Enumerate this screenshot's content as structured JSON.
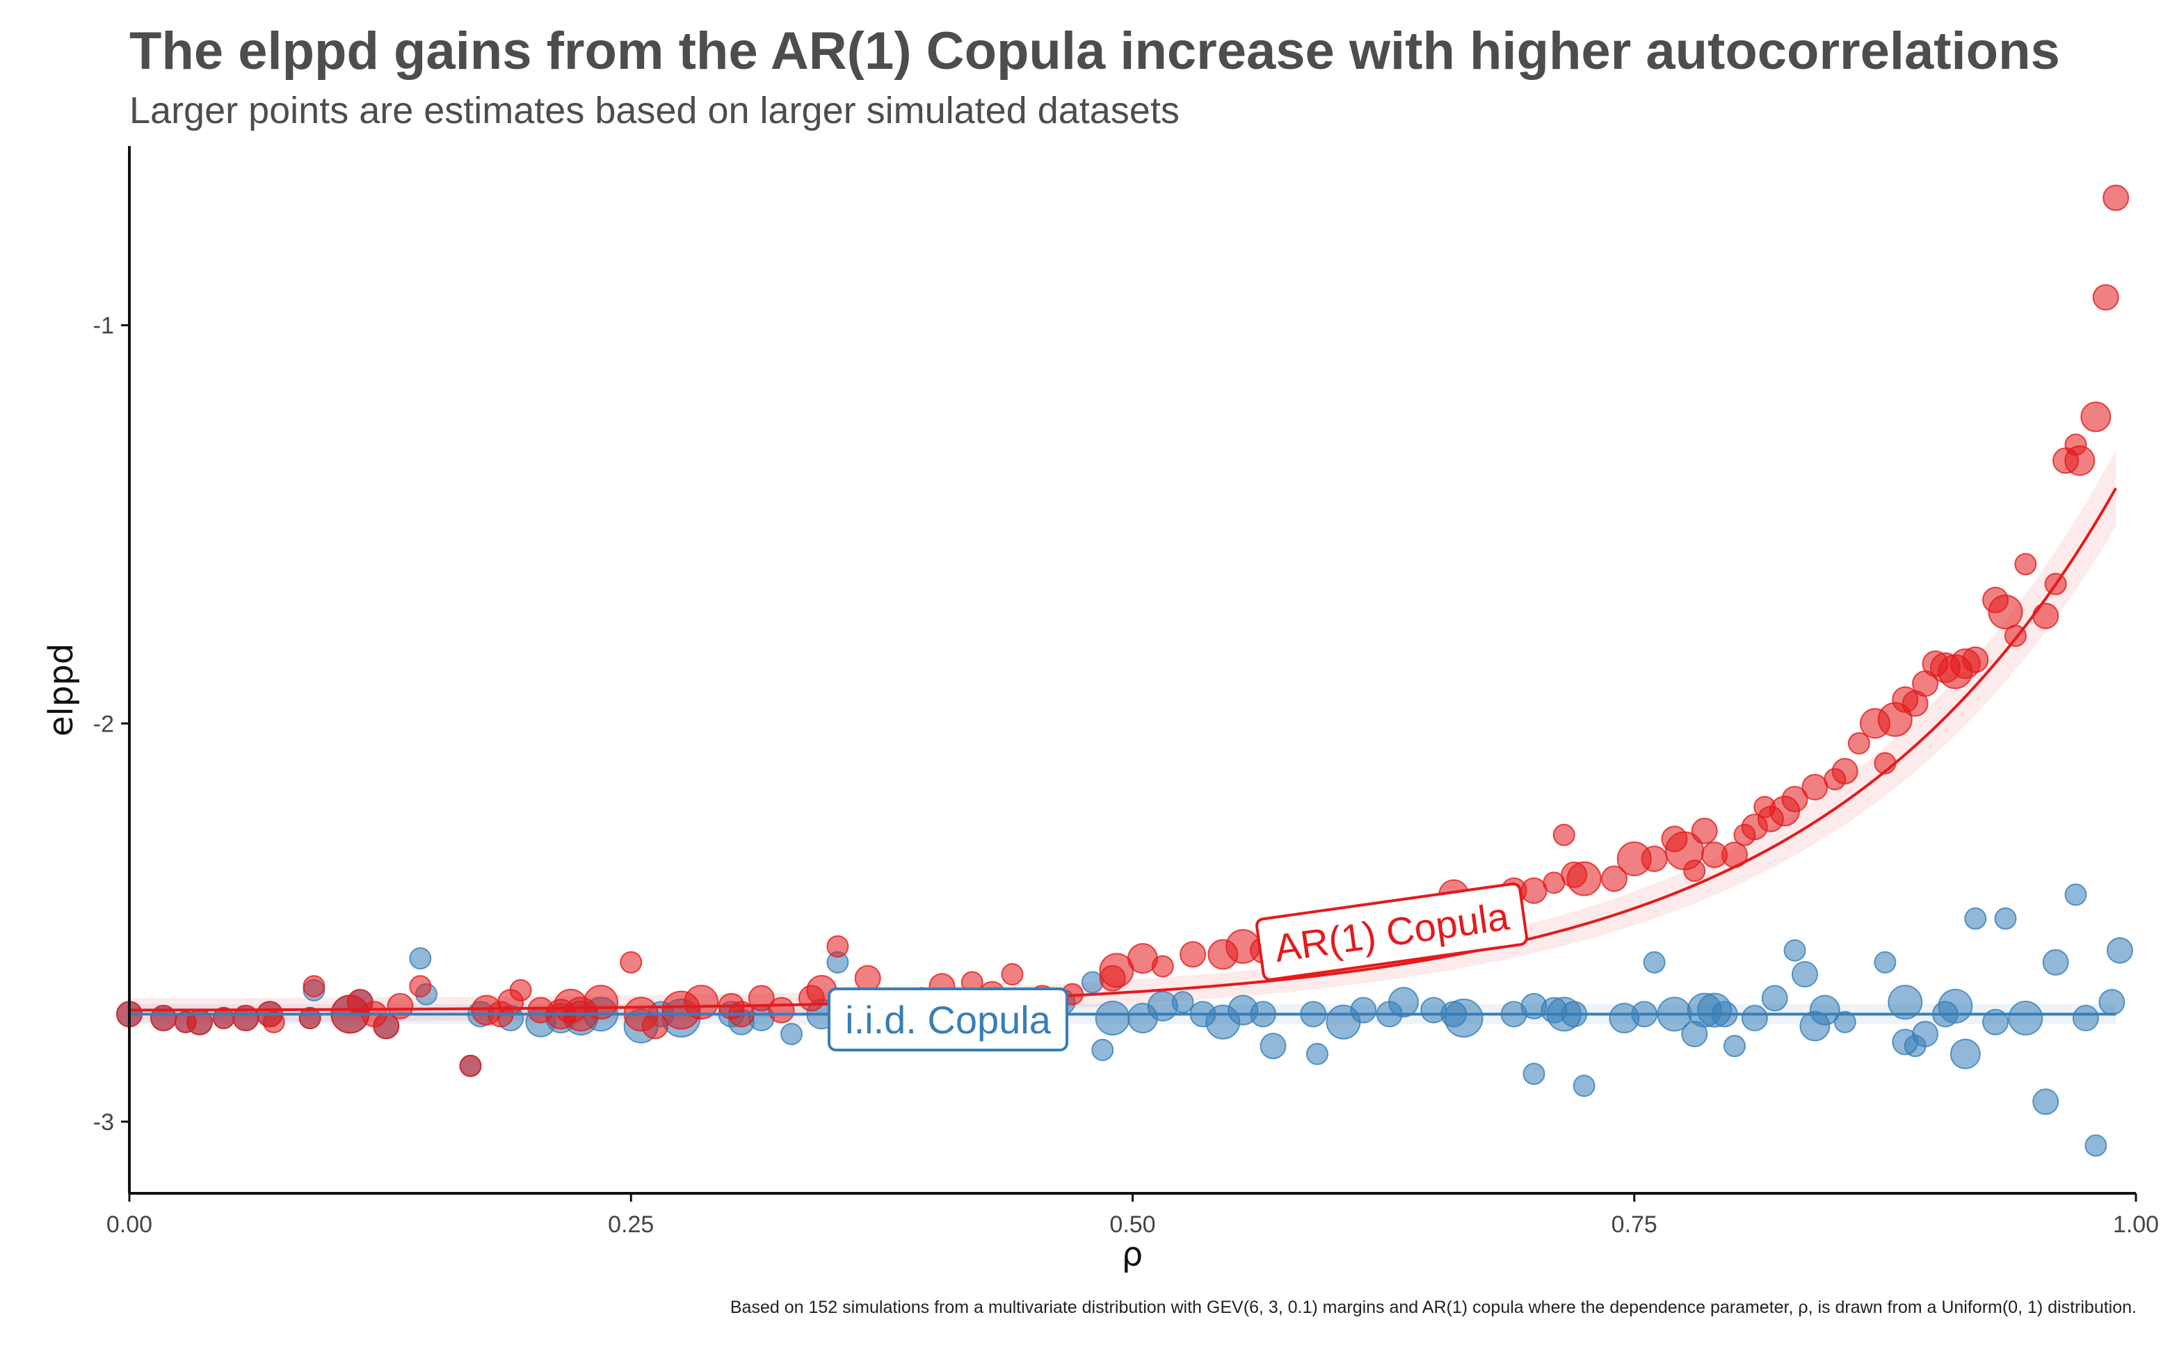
{
  "title": "The elppd gains from the AR(1) Copula increase with higher autocorrelations",
  "subtitle": "Larger points are estimates based on larger simulated datasets",
  "caption": "Based on 152 simulations from a multivariate distribution with GEV(6, 3, 0.1) margins and AR(1) copula where the dependence parameter, ρ, is drawn from a Uniform(0, 1) distribution.",
  "colors": {
    "ar1": "#e41a1c",
    "iid": "#377eb8"
  },
  "chart_data": {
    "type": "scatter",
    "xlabel": "ρ",
    "ylabel": "elppd",
    "xlim": [
      0,
      1
    ],
    "ylim": [
      -3.18,
      -0.55
    ],
    "xticks": [
      0,
      0.25,
      0.5,
      0.75,
      1
    ],
    "xtick_labels": [
      "0.00",
      "0.25",
      "0.50",
      "0.75",
      "1.00"
    ],
    "yticks": [
      -1,
      -2,
      -3
    ],
    "ytick_labels": [
      "-1",
      "-2",
      "-3"
    ],
    "grid": false,
    "series": [
      {
        "name": "AR(1) Copula",
        "color": "#e41a1c",
        "fit": {
          "form": "exponential",
          "base": -2.72,
          "scale": 0.00158,
          "rate": 6.79
        },
        "points": [
          [
            0.0,
            -2.73,
            4
          ],
          [
            0.017,
            -2.74,
            4
          ],
          [
            0.028,
            -2.75,
            3
          ],
          [
            0.035,
            -2.75,
            4
          ],
          [
            0.047,
            -2.74,
            3
          ],
          [
            0.058,
            -2.74,
            4
          ],
          [
            0.07,
            -2.73,
            4
          ],
          [
            0.072,
            -2.75,
            3
          ],
          [
            0.09,
            -2.74,
            3
          ],
          [
            0.092,
            -2.66,
            3
          ],
          [
            0.11,
            -2.73,
            7
          ],
          [
            0.115,
            -2.7,
            4
          ],
          [
            0.122,
            -2.73,
            4
          ],
          [
            0.128,
            -2.76,
            4
          ],
          [
            0.135,
            -2.71,
            4
          ],
          [
            0.145,
            -2.66,
            3
          ],
          [
            0.17,
            -2.86,
            3
          ],
          [
            0.178,
            -2.72,
            5
          ],
          [
            0.185,
            -2.73,
            4
          ],
          [
            0.19,
            -2.7,
            4
          ],
          [
            0.195,
            -2.67,
            3
          ],
          [
            0.205,
            -2.72,
            4
          ],
          [
            0.215,
            -2.73,
            5
          ],
          [
            0.22,
            -2.71,
            6
          ],
          [
            0.225,
            -2.73,
            6
          ],
          [
            0.235,
            -2.7,
            6
          ],
          [
            0.25,
            -2.6,
            3
          ],
          [
            0.255,
            -2.73,
            6
          ],
          [
            0.262,
            -2.76,
            4
          ],
          [
            0.275,
            -2.72,
            7
          ],
          [
            0.285,
            -2.7,
            6
          ],
          [
            0.3,
            -2.71,
            4
          ],
          [
            0.305,
            -2.73,
            4
          ],
          [
            0.315,
            -2.69,
            4
          ],
          [
            0.325,
            -2.72,
            4
          ],
          [
            0.34,
            -2.69,
            4
          ],
          [
            0.345,
            -2.67,
            5
          ],
          [
            0.353,
            -2.56,
            3
          ],
          [
            0.368,
            -2.64,
            4
          ],
          [
            0.38,
            -2.72,
            4
          ],
          [
            0.395,
            -2.69,
            3
          ],
          [
            0.405,
            -2.66,
            4
          ],
          [
            0.42,
            -2.65,
            3
          ],
          [
            0.43,
            -2.68,
            4
          ],
          [
            0.44,
            -2.63,
            3
          ],
          [
            0.455,
            -2.69,
            4
          ],
          [
            0.47,
            -2.68,
            3
          ],
          [
            0.49,
            -2.64,
            4
          ],
          [
            0.492,
            -2.62,
            6
          ],
          [
            0.505,
            -2.59,
            5
          ],
          [
            0.515,
            -2.61,
            3
          ],
          [
            0.53,
            -2.58,
            4
          ],
          [
            0.545,
            -2.58,
            5
          ],
          [
            0.555,
            -2.56,
            6
          ],
          [
            0.565,
            -2.57,
            4
          ],
          [
            0.58,
            -2.54,
            4
          ],
          [
            0.6,
            -2.52,
            4
          ],
          [
            0.62,
            -2.5,
            3
          ],
          [
            0.64,
            -2.47,
            4
          ],
          [
            0.66,
            -2.43,
            5
          ],
          [
            0.69,
            -2.42,
            4
          ],
          [
            0.7,
            -2.42,
            4
          ],
          [
            0.71,
            -2.4,
            3
          ],
          [
            0.72,
            -2.38,
            4
          ],
          [
            0.715,
            -2.28,
            3
          ],
          [
            0.725,
            -2.39,
            6
          ],
          [
            0.74,
            -2.39,
            4
          ],
          [
            0.75,
            -2.34,
            6
          ],
          [
            0.76,
            -2.34,
            4
          ],
          [
            0.77,
            -2.29,
            4
          ],
          [
            0.775,
            -2.32,
            7
          ],
          [
            0.78,
            -2.37,
            3
          ],
          [
            0.785,
            -2.27,
            4
          ],
          [
            0.79,
            -2.33,
            4
          ],
          [
            0.8,
            -2.33,
            4
          ],
          [
            0.805,
            -2.28,
            3
          ],
          [
            0.81,
            -2.26,
            4
          ],
          [
            0.815,
            -2.21,
            3
          ],
          [
            0.818,
            -2.24,
            4
          ],
          [
            0.825,
            -2.22,
            5
          ],
          [
            0.83,
            -2.19,
            4
          ],
          [
            0.84,
            -2.16,
            4
          ],
          [
            0.85,
            -2.14,
            3
          ],
          [
            0.855,
            -2.12,
            4
          ],
          [
            0.862,
            -2.05,
            3
          ],
          [
            0.87,
            -2.0,
            5
          ],
          [
            0.875,
            -2.1,
            3
          ],
          [
            0.88,
            -1.99,
            6
          ],
          [
            0.885,
            -1.94,
            4
          ],
          [
            0.89,
            -1.95,
            4
          ],
          [
            0.895,
            -1.9,
            4
          ],
          [
            0.9,
            -1.85,
            4
          ],
          [
            0.905,
            -1.86,
            5
          ],
          [
            0.91,
            -1.87,
            6
          ],
          [
            0.915,
            -1.85,
            5
          ],
          [
            0.92,
            -1.84,
            4
          ],
          [
            0.93,
            -1.69,
            4
          ],
          [
            0.935,
            -1.72,
            6
          ],
          [
            0.94,
            -1.78,
            3
          ],
          [
            0.945,
            -1.6,
            3
          ],
          [
            0.955,
            -1.73,
            4
          ],
          [
            0.96,
            -1.65,
            3
          ],
          [
            0.965,
            -1.34,
            4
          ],
          [
            0.97,
            -1.3,
            3
          ],
          [
            0.972,
            -1.34,
            5
          ],
          [
            0.98,
            -1.23,
            5
          ],
          [
            0.985,
            -0.93,
            4
          ],
          [
            0.99,
            -0.68,
            4
          ]
        ]
      },
      {
        "name": "i.i.d. Copula",
        "color": "#377eb8",
        "fit": {
          "form": "constant",
          "value": -2.73
        },
        "points": [
          [
            0.0,
            -2.73,
            4
          ],
          [
            0.017,
            -2.74,
            4
          ],
          [
            0.028,
            -2.75,
            3
          ],
          [
            0.035,
            -2.75,
            4
          ],
          [
            0.047,
            -2.74,
            3
          ],
          [
            0.058,
            -2.74,
            4
          ],
          [
            0.07,
            -2.73,
            4
          ],
          [
            0.09,
            -2.74,
            3
          ],
          [
            0.092,
            -2.67,
            3
          ],
          [
            0.11,
            -2.73,
            7
          ],
          [
            0.115,
            -2.7,
            4
          ],
          [
            0.128,
            -2.76,
            4
          ],
          [
            0.145,
            -2.59,
            3
          ],
          [
            0.148,
            -2.68,
            3
          ],
          [
            0.17,
            -2.86,
            3
          ],
          [
            0.175,
            -2.73,
            4
          ],
          [
            0.19,
            -2.74,
            4
          ],
          [
            0.205,
            -2.75,
            5
          ],
          [
            0.215,
            -2.74,
            5
          ],
          [
            0.225,
            -2.74,
            6
          ],
          [
            0.235,
            -2.73,
            6
          ],
          [
            0.255,
            -2.76,
            6
          ],
          [
            0.265,
            -2.73,
            4
          ],
          [
            0.275,
            -2.74,
            7
          ],
          [
            0.3,
            -2.73,
            4
          ],
          [
            0.305,
            -2.75,
            4
          ],
          [
            0.315,
            -2.74,
            4
          ],
          [
            0.33,
            -2.78,
            3
          ],
          [
            0.345,
            -2.73,
            5
          ],
          [
            0.353,
            -2.6,
            3
          ],
          [
            0.36,
            -2.7,
            4
          ],
          [
            0.38,
            -2.74,
            4
          ],
          [
            0.395,
            -2.72,
            3
          ],
          [
            0.41,
            -2.71,
            4
          ],
          [
            0.42,
            -2.74,
            3
          ],
          [
            0.435,
            -2.73,
            4
          ],
          [
            0.45,
            -2.72,
            3
          ],
          [
            0.465,
            -2.7,
            4
          ],
          [
            0.48,
            -2.65,
            3
          ],
          [
            0.485,
            -2.82,
            3
          ],
          [
            0.49,
            -2.74,
            6
          ],
          [
            0.505,
            -2.74,
            5
          ],
          [
            0.515,
            -2.71,
            5
          ],
          [
            0.525,
            -2.7,
            3
          ],
          [
            0.535,
            -2.73,
            4
          ],
          [
            0.545,
            -2.75,
            6
          ],
          [
            0.555,
            -2.72,
            5
          ],
          [
            0.565,
            -2.73,
            4
          ],
          [
            0.57,
            -2.81,
            4
          ],
          [
            0.59,
            -2.73,
            4
          ],
          [
            0.592,
            -2.83,
            3
          ],
          [
            0.605,
            -2.75,
            6
          ],
          [
            0.615,
            -2.72,
            4
          ],
          [
            0.628,
            -2.73,
            4
          ],
          [
            0.635,
            -2.7,
            5
          ],
          [
            0.65,
            -2.72,
            4
          ],
          [
            0.66,
            -2.73,
            4
          ],
          [
            0.665,
            -2.74,
            7
          ],
          [
            0.69,
            -2.73,
            4
          ],
          [
            0.7,
            -2.71,
            4
          ],
          [
            0.7,
            -2.88,
            3
          ],
          [
            0.71,
            -2.72,
            4
          ],
          [
            0.715,
            -2.73,
            6
          ],
          [
            0.725,
            -2.91,
            3
          ],
          [
            0.72,
            -2.73,
            4
          ],
          [
            0.745,
            -2.74,
            5
          ],
          [
            0.755,
            -2.73,
            4
          ],
          [
            0.76,
            -2.6,
            3
          ],
          [
            0.77,
            -2.73,
            6
          ],
          [
            0.78,
            -2.78,
            4
          ],
          [
            0.785,
            -2.72,
            6
          ],
          [
            0.79,
            -2.72,
            6
          ],
          [
            0.795,
            -2.73,
            4
          ],
          [
            0.8,
            -2.81,
            3
          ],
          [
            0.81,
            -2.74,
            4
          ],
          [
            0.82,
            -2.69,
            4
          ],
          [
            0.83,
            -2.57,
            3
          ],
          [
            0.835,
            -2.63,
            4
          ],
          [
            0.84,
            -2.76,
            5
          ],
          [
            0.845,
            -2.72,
            5
          ],
          [
            0.855,
            -2.75,
            3
          ],
          [
            0.875,
            -2.6,
            3
          ],
          [
            0.885,
            -2.7,
            6
          ],
          [
            0.885,
            -2.8,
            4
          ],
          [
            0.89,
            -2.81,
            3
          ],
          [
            0.895,
            -2.78,
            4
          ],
          [
            0.905,
            -2.73,
            4
          ],
          [
            0.91,
            -2.71,
            6
          ],
          [
            0.915,
            -2.83,
            5
          ],
          [
            0.92,
            -2.49,
            3
          ],
          [
            0.93,
            -2.75,
            4
          ],
          [
            0.935,
            -2.49,
            3
          ],
          [
            0.945,
            -2.74,
            6
          ],
          [
            0.955,
            -2.95,
            4
          ],
          [
            0.96,
            -2.6,
            4
          ],
          [
            0.97,
            -2.43,
            3
          ],
          [
            0.975,
            -2.74,
            4
          ],
          [
            0.98,
            -3.06,
            3
          ],
          [
            0.988,
            -2.7,
            4
          ],
          [
            0.992,
            -2.57,
            4
          ]
        ]
      }
    ]
  }
}
